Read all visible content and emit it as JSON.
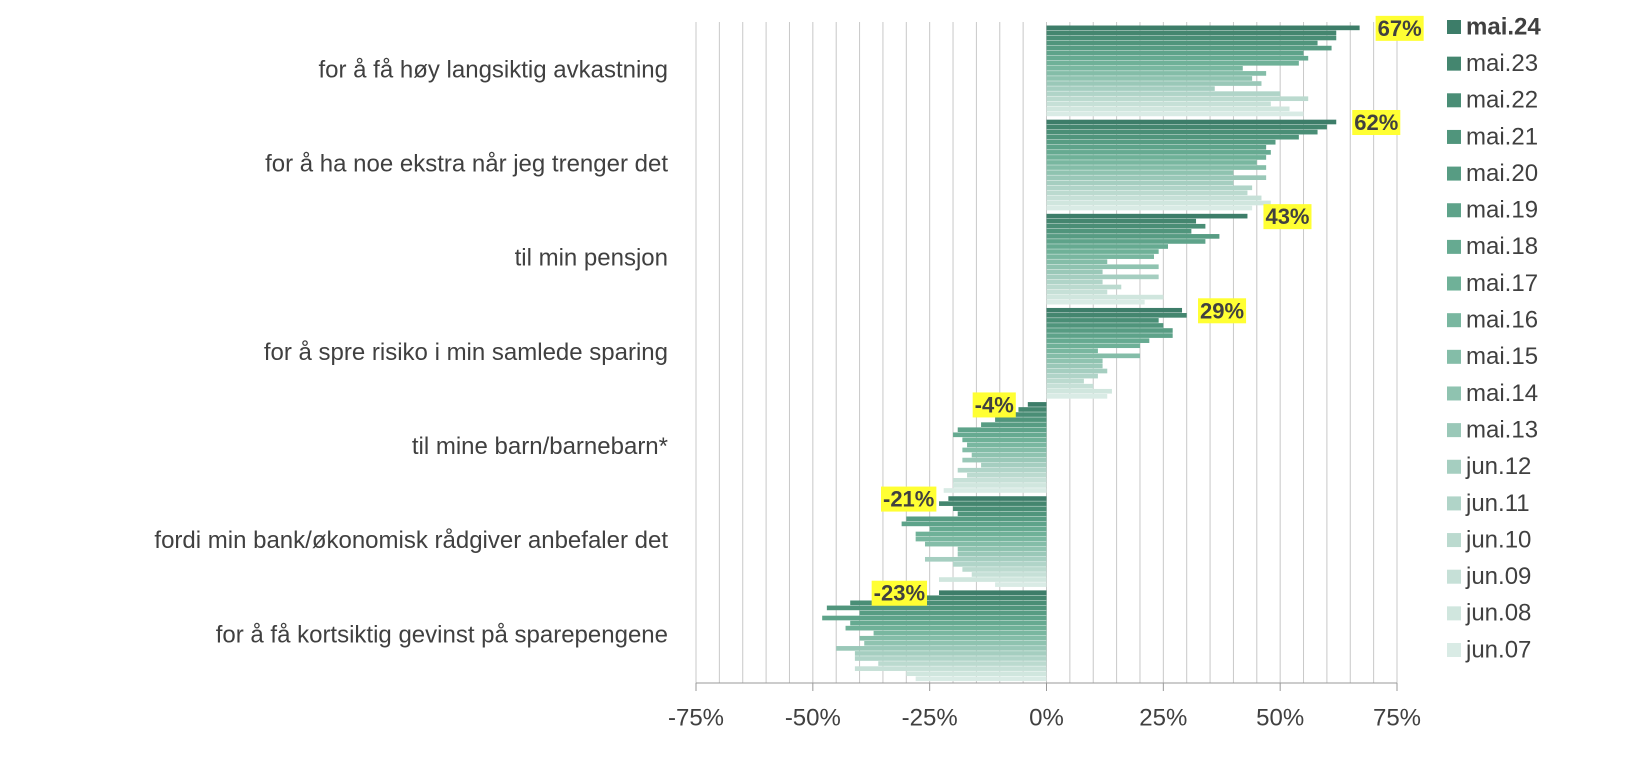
{
  "chart_data": {
    "type": "hbar",
    "categories": [
      "for å få høy langsiktig avkastning",
      "for å ha noe ekstra når jeg trenger det",
      "til min pensjon",
      "for å spre risiko i min samlede sparing",
      "til mine barn/barnebarn*",
      "fordi min bank/økonomisk rådgiver anbefaler det",
      "for å få kortsiktig gevinst på sparepengene"
    ],
    "series": [
      {
        "name": "mai.24",
        "color": "#3d7d69",
        "values": [
          67,
          62,
          43,
          29,
          -4,
          -21,
          -23
        ],
        "value_labels": [
          "67%",
          "62%",
          "43%",
          "29%",
          "-4%",
          "-21%",
          "-23%"
        ]
      },
      {
        "name": "mai.23",
        "color": "#44866f",
        "values": [
          62,
          60,
          32,
          30,
          -6,
          -23,
          -26
        ]
      },
      {
        "name": "mai.22",
        "color": "#4a8e76",
        "values": [
          62,
          58,
          34,
          24,
          -9,
          -20,
          -42
        ]
      },
      {
        "name": "mai.21",
        "color": "#50957c",
        "values": [
          58,
          54,
          31,
          25,
          -11,
          -19,
          -47
        ]
      },
      {
        "name": "mai.20",
        "color": "#579c83",
        "values": [
          61,
          49,
          37,
          27,
          -14,
          -30,
          -40
        ]
      },
      {
        "name": "mai.19",
        "color": "#5ea38a",
        "values": [
          55,
          47,
          34,
          27,
          -19,
          -31,
          -48
        ]
      },
      {
        "name": "mai.18",
        "color": "#66aa91",
        "values": [
          56,
          48,
          26,
          22,
          -20,
          -25,
          -42
        ]
      },
      {
        "name": "mai.17",
        "color": "#6fb198",
        "values": [
          54,
          47,
          24,
          20,
          -18,
          -28,
          -43
        ]
      },
      {
        "name": "mai.16",
        "color": "#79b7a0",
        "values": [
          42,
          45,
          23,
          11,
          -17,
          -28,
          -37
        ]
      },
      {
        "name": "mai.15",
        "color": "#84bda8",
        "values": [
          47,
          47,
          13,
          20,
          -18,
          -26,
          -40
        ]
      },
      {
        "name": "mai.14",
        "color": "#8fc3b0",
        "values": [
          44,
          40,
          24,
          12,
          -16,
          -19,
          -39
        ]
      },
      {
        "name": "mai.13",
        "color": "#9ac8b8",
        "values": [
          46,
          47,
          12,
          12,
          -18,
          -19,
          -45
        ]
      },
      {
        "name": "jun.12",
        "color": "#a5cec0",
        "values": [
          36,
          40,
          24,
          13,
          -14,
          -26,
          -41
        ]
      },
      {
        "name": "jun.11",
        "color": "#b0d4c8",
        "values": [
          50,
          44,
          12,
          11,
          -19,
          -20,
          -41
        ]
      },
      {
        "name": "jun.10",
        "color": "#bbdacf",
        "values": [
          56,
          43,
          16,
          8,
          -17,
          -18,
          -36
        ]
      },
      {
        "name": "jun.09",
        "color": "#c6e0d7",
        "values": [
          48,
          46,
          13,
          10,
          -20,
          -16,
          -41
        ]
      },
      {
        "name": "jun.08",
        "color": "#d0e6de",
        "values": [
          52,
          48,
          25,
          14,
          -20,
          -23,
          -30
        ]
      },
      {
        "name": "jun.07",
        "color": "#d9ebe5",
        "values": [
          55,
          44,
          21,
          13,
          -22,
          -11,
          -28
        ]
      }
    ],
    "xlim": [
      -75,
      75
    ],
    "xticks": [
      {
        "value": -75,
        "label": "-75%"
      },
      {
        "value": -50,
        "label": "-50%"
      },
      {
        "value": -25,
        "label": "-25%"
      },
      {
        "value": 0,
        "label": "0%"
      },
      {
        "value": 25,
        "label": "25%"
      },
      {
        "value": 50,
        "label": "50%"
      },
      {
        "value": 75,
        "label": "75%"
      }
    ],
    "xgrid": [
      -75,
      -70,
      -65,
      -60,
      -55,
      -50,
      -45,
      -40,
      -35,
      -30,
      -25,
      -20,
      -15,
      -10,
      -5,
      0,
      5,
      10,
      15,
      20,
      25,
      30,
      35,
      40,
      45,
      50,
      55,
      60,
      65,
      70,
      75
    ],
    "grid": true,
    "legend": "right",
    "label_background": "#ffff33"
  }
}
